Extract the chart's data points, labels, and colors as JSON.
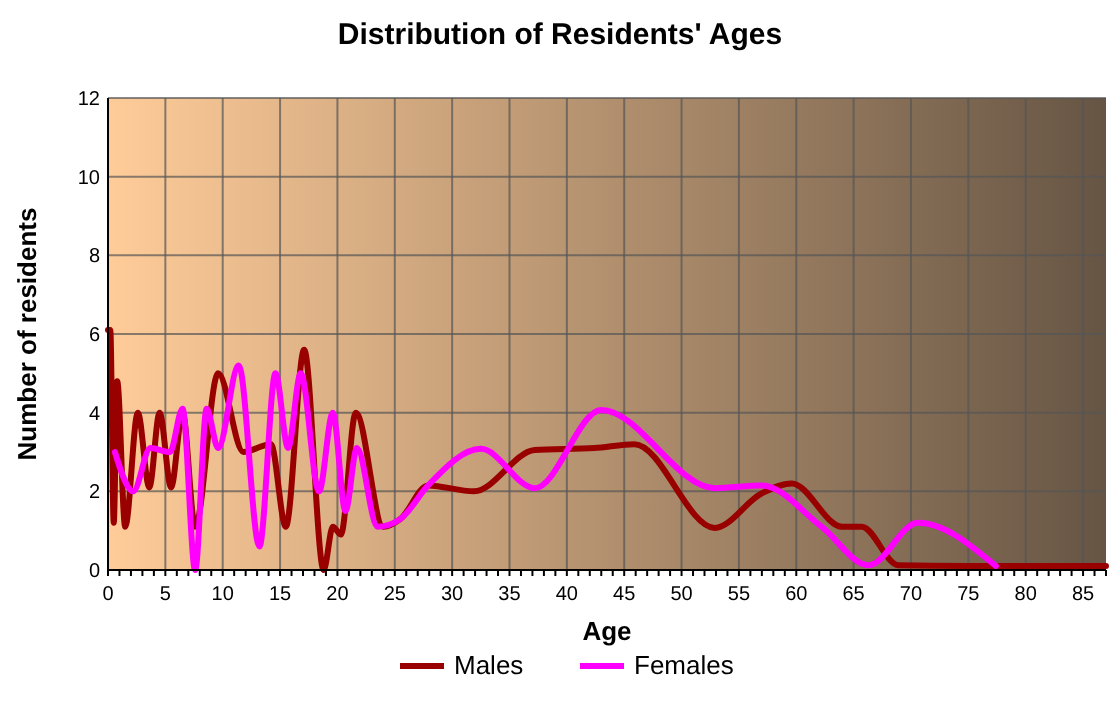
{
  "chart_data": {
    "type": "line",
    "title": "Distribution of Residents' Ages",
    "xlabel": "Age",
    "ylabel": "Number of residents",
    "xlim": [
      0,
      87
    ],
    "xticks": [
      0,
      5,
      10,
      15,
      20,
      25,
      30,
      35,
      40,
      45,
      50,
      55,
      60,
      65,
      70,
      75,
      80,
      85
    ],
    "ylim": [
      0,
      12
    ],
    "yticks": [
      0,
      2,
      4,
      6,
      8,
      10,
      12
    ],
    "grid": true,
    "legend": "bottom",
    "line_style": "solid",
    "series": [
      {
        "name": "Males",
        "color": "#990000",
        "x": [
          0,
          0.2,
          0.5,
          0.8,
          1.5,
          2.6,
          3.6,
          4.5,
          5.5,
          6.5,
          7.6,
          9.6,
          11.8,
          14.2,
          15.5,
          17.1,
          18.8,
          19.6,
          20.3,
          21.6,
          24,
          25.5,
          27.9,
          31.9,
          37.2,
          42.4,
          45.9,
          52.9,
          57,
          59.6,
          64,
          65.7,
          68.9,
          75,
          80,
          87
        ],
        "values": [
          6.1,
          6.1,
          1.2,
          4.8,
          1.1,
          4,
          2.1,
          4,
          2.1,
          4,
          1.1,
          5,
          3,
          3.2,
          1.1,
          5.6,
          0,
          1.1,
          0.9,
          4,
          1.1,
          1.3,
          2.15,
          2,
          3.05,
          3.1,
          3.2,
          1.07,
          1.95,
          2.2,
          1.1,
          1.1,
          0.12,
          0.1,
          0.1,
          0.1
        ]
      },
      {
        "name": "Females",
        "color": "#ff00ff",
        "x": [
          0.6,
          2.2,
          3.7,
          5.4,
          6.5,
          7.6,
          8.6,
          9.6,
          11.4,
          13.2,
          14.6,
          15.7,
          16.8,
          18.4,
          19.6,
          20.7,
          21.7,
          23.5,
          25.5,
          27.9,
          32.5,
          37.2,
          43,
          52.9,
          57,
          62.2,
          66.3,
          70.6,
          77.4
        ],
        "values": [
          3,
          2,
          3.1,
          3,
          4.1,
          0,
          4.1,
          3.1,
          5.2,
          0.6,
          5,
          3.1,
          5,
          2,
          4,
          1.5,
          3.1,
          1.1,
          1.3,
          2.15,
          3.08,
          2.08,
          4.07,
          2.08,
          2.15,
          1.1,
          0.12,
          1.2,
          0.1
        ]
      }
    ]
  }
}
